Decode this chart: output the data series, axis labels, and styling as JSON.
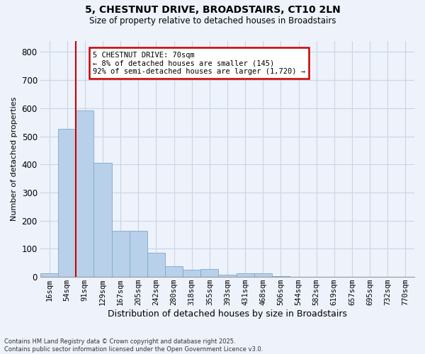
{
  "title_line1": "5, CHESTNUT DRIVE, BROADSTAIRS, CT10 2LN",
  "title_line2": "Size of property relative to detached houses in Broadstairs",
  "xlabel": "Distribution of detached houses by size in Broadstairs",
  "ylabel": "Number of detached properties",
  "categories": [
    "16sqm",
    "54sqm",
    "91sqm",
    "129sqm",
    "167sqm",
    "205sqm",
    "242sqm",
    "280sqm",
    "318sqm",
    "355sqm",
    "393sqm",
    "431sqm",
    "468sqm",
    "506sqm",
    "544sqm",
    "582sqm",
    "619sqm",
    "657sqm",
    "695sqm",
    "732sqm",
    "770sqm"
  ],
  "values": [
    13,
    527,
    593,
    405,
    163,
    163,
    85,
    38,
    25,
    28,
    8,
    13,
    13,
    3,
    0,
    0,
    0,
    0,
    0,
    0,
    0
  ],
  "bar_color": "#b8d0ea",
  "bar_edge_color": "#7aaacf",
  "grid_color": "#c8d4e8",
  "background_color": "#eef2fb",
  "annotation_text": "5 CHESTNUT DRIVE: 70sqm\n← 8% of detached houses are smaller (145)\n92% of semi-detached houses are larger (1,720) →",
  "annotation_box_color": "#ffffff",
  "annotation_box_edge": "#cc0000",
  "red_line_color": "#cc0000",
  "ylim": [
    0,
    840
  ],
  "yticks": [
    0,
    100,
    200,
    300,
    400,
    500,
    600,
    700,
    800
  ],
  "footer_line1": "Contains HM Land Registry data © Crown copyright and database right 2025.",
  "footer_line2": "Contains public sector information licensed under the Open Government Licence v3.0."
}
